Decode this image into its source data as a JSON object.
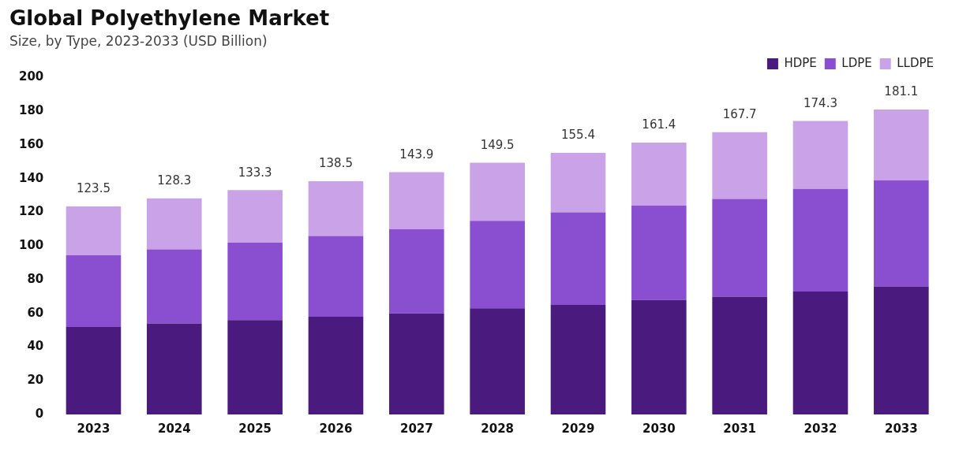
{
  "chart_data": {
    "type": "bar",
    "title": "Global Polyethylene Market",
    "subtitle": "Size, by Type, 2023-2033 (USD Billion)",
    "categories": [
      "2023",
      "2024",
      "2025",
      "2026",
      "2027",
      "2028",
      "2029",
      "2030",
      "2031",
      "2032",
      "2033"
    ],
    "series": [
      {
        "name": "HDPE",
        "color": "#4a1a7e",
        "values": [
          52,
          54,
          56,
          58,
          60,
          63,
          65,
          68,
          70,
          73,
          76
        ]
      },
      {
        "name": "LDPE",
        "color": "#8a4fd0",
        "values": [
          42.5,
          44,
          46,
          48,
          50,
          52,
          55,
          56,
          58,
          61,
          63
        ]
      },
      {
        "name": "LLDPE",
        "color": "#c9a2e8",
        "values": [
          29,
          30.3,
          31.3,
          32.5,
          33.9,
          34.5,
          35.4,
          37.4,
          39.7,
          40.3,
          42.1
        ]
      }
    ],
    "stacked": true,
    "ylim": [
      0,
      200
    ],
    "yticks": [
      0,
      20,
      40,
      60,
      80,
      100,
      120,
      140,
      160,
      180,
      200
    ],
    "totals": [
      "123.5",
      "128.3",
      "133.3",
      "138.5",
      "143.9",
      "149.5",
      "155.4",
      "161.4",
      "167.7",
      "174.3",
      "181.1"
    ],
    "grid": false,
    "legend": "top right"
  }
}
